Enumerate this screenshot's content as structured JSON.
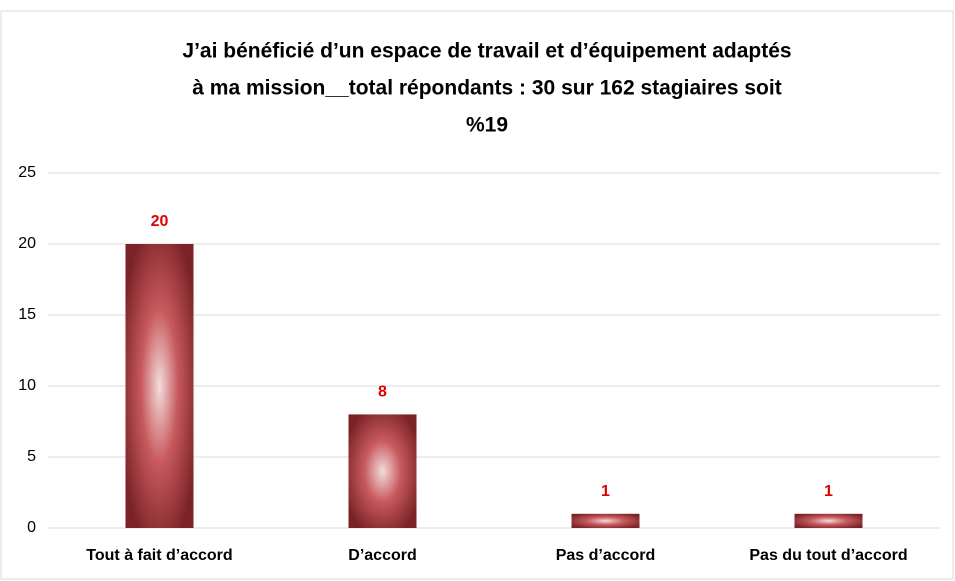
{
  "chart_data": {
    "type": "bar",
    "title": [
      "J’ai bénéficié d’un espace de travail et d’équipement adaptés",
      "à ma mission__total répondants : 30 sur 162 stagiaires soit",
      "%19"
    ],
    "categories": [
      "Tout à fait d’accord",
      "D’accord",
      "Pas d’accord",
      "Pas du tout d’accord"
    ],
    "values": [
      20,
      8,
      1,
      1
    ],
    "color": "#8b2a2e",
    "ylim": [
      0,
      25
    ],
    "yticks": [
      0,
      5,
      10,
      15,
      20,
      25
    ],
    "grid": true
  }
}
